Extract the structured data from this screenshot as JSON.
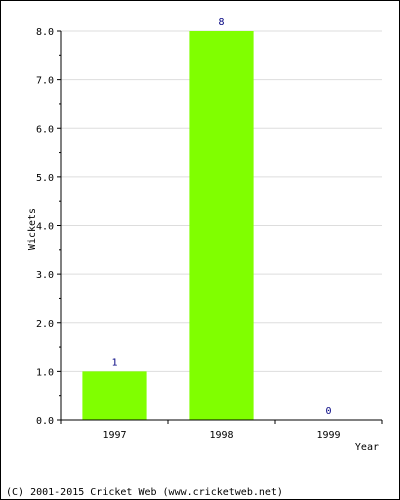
{
  "chart_data": {
    "type": "bar",
    "categories": [
      "1997",
      "1998",
      "1999"
    ],
    "values": [
      1,
      8,
      0
    ],
    "value_labels": [
      "1",
      "8",
      "0"
    ],
    "xlabel": "Year",
    "ylabel": "Wickets",
    "ylim": [
      0,
      8
    ],
    "yticks": [
      "0.0",
      "1.0",
      "2.0",
      "3.0",
      "4.0",
      "5.0",
      "6.0",
      "7.0",
      "8.0"
    ],
    "grid": true,
    "legend": "none",
    "bar_color": "#80ff00",
    "grid_color": "#dddddd",
    "value_label_color": "#000080"
  },
  "footer": {
    "copyright": "(C) 2001-2015 Cricket Web (www.cricketweb.net)"
  }
}
